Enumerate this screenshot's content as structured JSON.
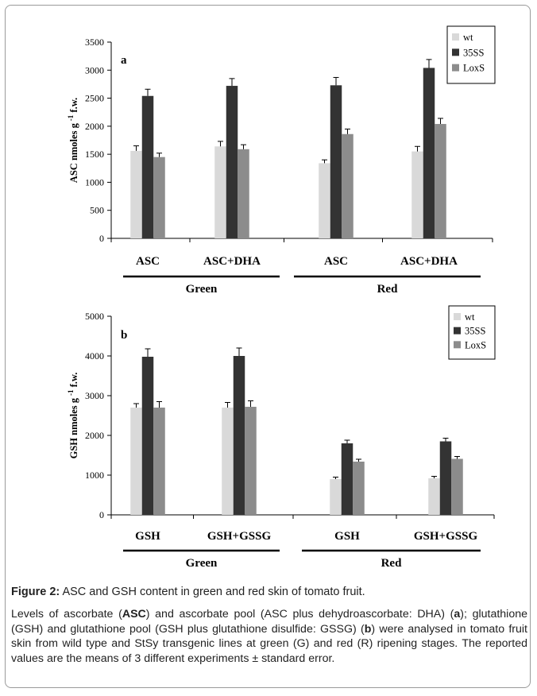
{
  "chart_data": [
    {
      "type": "bar",
      "panel": "a",
      "ylabel": "ASC nmoles g -1 f.w.",
      "ylabel_main": "ASC nmoles g",
      "ylabel_sup": "-1",
      "ylabel_tail": " f.w.",
      "ylim": [
        0,
        3500
      ],
      "yticks": [
        "0",
        "500",
        "1000",
        "1500",
        "2000",
        "2500",
        "3000",
        "3500"
      ],
      "categories": [
        "ASC",
        "ASC+DHA",
        "ASC",
        "ASC+DHA"
      ],
      "groups": [
        {
          "label": "Green",
          "categories": [
            0,
            1
          ]
        },
        {
          "label": "Red",
          "categories": [
            2,
            3
          ]
        }
      ],
      "series": [
        {
          "name": "wt",
          "color": "#d9d9d9",
          "values": [
            1560,
            1640,
            1340,
            1550
          ],
          "errors": [
            90,
            90,
            60,
            90
          ]
        },
        {
          "name": "35SS",
          "color": "#333333",
          "values": [
            2540,
            2720,
            2730,
            3040
          ],
          "errors": [
            120,
            130,
            140,
            150
          ]
        },
        {
          "name": "LoxS",
          "color": "#8c8c8c",
          "values": [
            1450,
            1590,
            1860,
            2040
          ],
          "errors": [
            70,
            80,
            90,
            100
          ]
        }
      ],
      "legend_position": "top-right",
      "grid": false
    },
    {
      "type": "bar",
      "panel": "b",
      "ylabel": "GSH nmoles g -1 f.w.",
      "ylabel_main": "GSH nmoles g",
      "ylabel_sup": "-1",
      "ylabel_tail": " f.w.",
      "ylim": [
        0,
        5000
      ],
      "yticks": [
        "0",
        "1000",
        "2000",
        "3000",
        "4000",
        "5000"
      ],
      "categories": [
        "GSH",
        "GSH+GSSG",
        "GSH",
        "GSH+GSSG"
      ],
      "groups": [
        {
          "label": "Green",
          "categories": [
            0,
            1
          ]
        },
        {
          "label": "Red",
          "categories": [
            2,
            3
          ]
        }
      ],
      "series": [
        {
          "name": "wt",
          "color": "#d9d9d9",
          "values": [
            2700,
            2700,
            900,
            920
          ],
          "errors": [
            100,
            130,
            50,
            50
          ]
        },
        {
          "name": "35SS",
          "color": "#333333",
          "values": [
            3980,
            4000,
            1800,
            1850
          ],
          "errors": [
            200,
            200,
            80,
            80
          ]
        },
        {
          "name": "LoxS",
          "color": "#8c8c8c",
          "values": [
            2700,
            2720,
            1340,
            1410
          ],
          "errors": [
            150,
            150,
            60,
            60
          ]
        }
      ],
      "legend_position": "top-right",
      "grid": false
    }
  ],
  "caption": {
    "label": "Figure 2:",
    "title": " ASC and GSH content in green and red skin of tomato fruit.",
    "body": [
      {
        "t": "Levels of ascorbate ("
      },
      {
        "t": "ASC",
        "b": true
      },
      {
        "t": ") and ascorbate pool (ASC plus dehydroascorbate: DHA) ("
      },
      {
        "t": "a",
        "b": true
      },
      {
        "t": "); glutathione (GSH) and glutathione pool (GSH plus glutathione disulfide: GSSG) ("
      },
      {
        "t": "b",
        "b": true
      },
      {
        "t": ") were analysed in tomato fruit skin from wild type and StSy transgenic lines at green (G) and red (R) ripening stages. The reported values are the means of 3 different experiments ± standard error."
      }
    ]
  }
}
